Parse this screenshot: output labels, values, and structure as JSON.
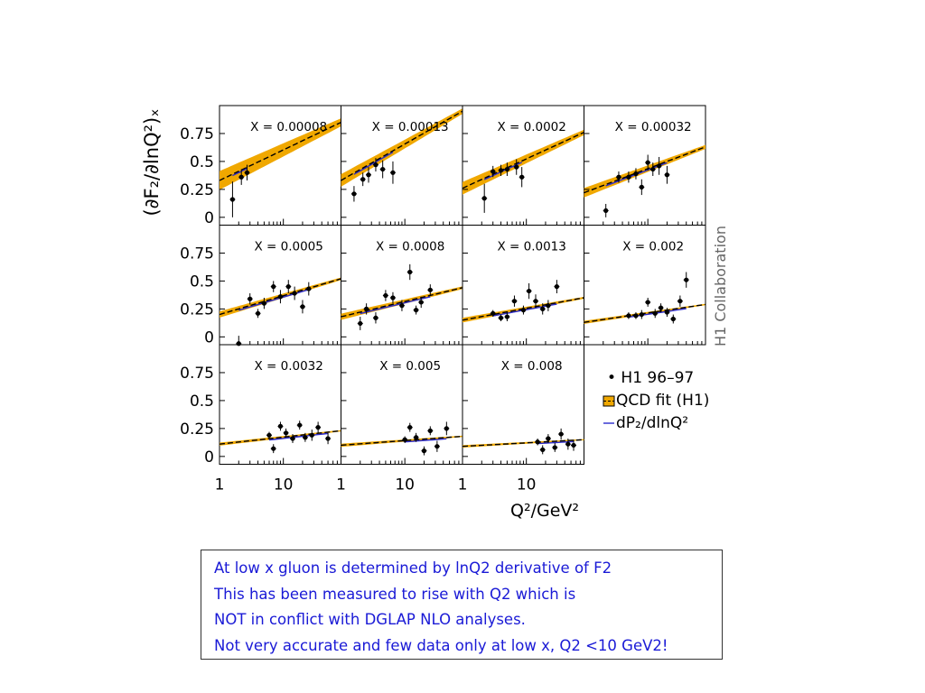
{
  "chart_data": {
    "type": "scatter",
    "panel_layout": "3x4 grid, legend in last cell",
    "y_axis": {
      "label": "(∂F₂/∂lnQ²)ₓ",
      "ticks": [
        "0",
        "0.25",
        "0.5",
        "0.75"
      ],
      "range": [
        -0.07,
        1.0
      ]
    },
    "x_axis": {
      "label": "Q²/GeV²",
      "scale": "log",
      "ticks": [
        "1",
        "10"
      ],
      "range": [
        1,
        80
      ]
    },
    "side_label": "H1 Collaboration",
    "legend": {
      "placement": "bottom-right",
      "items": [
        {
          "symbol": "dot",
          "label": "• H1 96–97"
        },
        {
          "symbol": "band",
          "label": "QCD fit (H1)"
        },
        {
          "symbol": "line",
          "label": "dP₂/dlnQ²"
        }
      ]
    },
    "colors": {
      "band": "#f0a800",
      "qcd_line": "#000000",
      "dp2_line": "#2a2acc",
      "points": "#000000"
    },
    "panels": [
      {
        "label": "X = 0.00008",
        "fit": [
          0.33,
          0.85
        ],
        "band": 0.06,
        "has_dp2": true,
        "points": [
          [
            1.6,
            0.16,
            0.16
          ],
          [
            2.2,
            0.36,
            0.07
          ],
          [
            2.7,
            0.4,
            0.07
          ]
        ]
      },
      {
        "label": "X = 0.00013",
        "fit": [
          0.33,
          0.95
        ],
        "band": 0.04,
        "has_dp2": true,
        "points": [
          [
            1.6,
            0.21,
            0.07
          ],
          [
            2.2,
            0.34,
            0.06
          ],
          [
            2.7,
            0.38,
            0.07
          ],
          [
            3.5,
            0.47,
            0.06
          ],
          [
            4.5,
            0.43,
            0.08
          ],
          [
            6.5,
            0.4,
            0.1
          ]
        ]
      },
      {
        "label": "X = 0.0002",
        "fit": [
          0.26,
          0.76
        ],
        "band": 0.04,
        "has_dp2": true,
        "points": [
          [
            2.2,
            0.17,
            0.13
          ],
          [
            3.0,
            0.41,
            0.05
          ],
          [
            4.0,
            0.42,
            0.05
          ],
          [
            5.0,
            0.43,
            0.06
          ],
          [
            7.0,
            0.45,
            0.07
          ],
          [
            8.5,
            0.36,
            0.09
          ]
        ]
      },
      {
        "label": "X = 0.00032",
        "fit": [
          0.22,
          0.63
        ],
        "band": 0.03,
        "has_dp2": true,
        "points": [
          [
            2.2,
            0.06,
            0.06
          ],
          [
            3.5,
            0.36,
            0.05
          ],
          [
            5.0,
            0.36,
            0.05
          ],
          [
            6.5,
            0.39,
            0.05
          ],
          [
            8.0,
            0.27,
            0.07
          ],
          [
            10,
            0.49,
            0.07
          ],
          [
            12,
            0.43,
            0.06
          ],
          [
            15,
            0.46,
            0.08
          ],
          [
            20,
            0.38,
            0.08
          ]
        ]
      },
      {
        "label": "X = 0.0005",
        "fit": [
          0.2,
          0.52
        ],
        "band": 0.02,
        "has_dp2": true,
        "points": [
          [
            2.0,
            -0.06,
            0.07
          ],
          [
            3.0,
            0.34,
            0.05
          ],
          [
            4.0,
            0.21,
            0.04
          ],
          [
            5.0,
            0.3,
            0.05
          ],
          [
            7.0,
            0.45,
            0.05
          ],
          [
            9.0,
            0.36,
            0.06
          ],
          [
            12,
            0.45,
            0.06
          ],
          [
            15,
            0.39,
            0.06
          ],
          [
            20,
            0.27,
            0.06
          ],
          [
            25,
            0.43,
            0.06
          ]
        ]
      },
      {
        "label": "X = 0.0008",
        "fit": [
          0.18,
          0.44
        ],
        "band": 0.02,
        "has_dp2": true,
        "points": [
          [
            2.0,
            0.12,
            0.06
          ],
          [
            2.5,
            0.25,
            0.05
          ],
          [
            3.5,
            0.17,
            0.05
          ],
          [
            5.0,
            0.37,
            0.05
          ],
          [
            6.5,
            0.35,
            0.05
          ],
          [
            9.0,
            0.28,
            0.05
          ],
          [
            12,
            0.58,
            0.07
          ],
          [
            15,
            0.24,
            0.04
          ],
          [
            18,
            0.31,
            0.05
          ],
          [
            25,
            0.42,
            0.05
          ]
        ]
      },
      {
        "label": "X = 0.0013",
        "fit": [
          0.15,
          0.35
        ],
        "band": 0.015,
        "has_dp2": true,
        "points": [
          [
            3.0,
            0.21,
            0.03
          ],
          [
            4.0,
            0.17,
            0.03
          ],
          [
            5.0,
            0.18,
            0.04
          ],
          [
            6.5,
            0.32,
            0.05
          ],
          [
            9.0,
            0.24,
            0.04
          ],
          [
            11,
            0.41,
            0.07
          ],
          [
            14,
            0.32,
            0.06
          ],
          [
            18,
            0.25,
            0.05
          ],
          [
            22,
            0.28,
            0.05
          ],
          [
            30,
            0.45,
            0.06
          ]
        ]
      },
      {
        "label": "X = 0.002",
        "fit": [
          0.13,
          0.29
        ],
        "band": 0.01,
        "has_dp2": true,
        "points": [
          [
            5.0,
            0.19,
            0.03
          ],
          [
            6.5,
            0.19,
            0.03
          ],
          [
            8.0,
            0.2,
            0.04
          ],
          [
            10,
            0.31,
            0.04
          ],
          [
            13,
            0.21,
            0.04
          ],
          [
            16,
            0.26,
            0.04
          ],
          [
            20,
            0.22,
            0.04
          ],
          [
            25,
            0.16,
            0.04
          ],
          [
            32,
            0.32,
            0.05
          ],
          [
            40,
            0.51,
            0.07
          ]
        ]
      },
      {
        "label": "X = 0.0032",
        "fit": [
          0.11,
          0.23
        ],
        "band": 0.01,
        "has_dp2": true,
        "points": [
          [
            6.0,
            0.19,
            0.03
          ],
          [
            7.0,
            0.07,
            0.04
          ],
          [
            9.0,
            0.27,
            0.04
          ],
          [
            11,
            0.21,
            0.04
          ],
          [
            14,
            0.16,
            0.04
          ],
          [
            18,
            0.28,
            0.04
          ],
          [
            22,
            0.17,
            0.04
          ],
          [
            28,
            0.19,
            0.05
          ],
          [
            35,
            0.26,
            0.05
          ],
          [
            50,
            0.16,
            0.05
          ]
        ]
      },
      {
        "label": "X = 0.005",
        "fit": [
          0.1,
          0.18
        ],
        "band": 0.01,
        "has_dp2": true,
        "points": [
          [
            10,
            0.15,
            0.03
          ],
          [
            12,
            0.26,
            0.04
          ],
          [
            15,
            0.17,
            0.04
          ],
          [
            20,
            0.05,
            0.04
          ],
          [
            25,
            0.23,
            0.04
          ],
          [
            32,
            0.09,
            0.05
          ],
          [
            45,
            0.25,
            0.06
          ]
        ]
      },
      {
        "label": "X = 0.008",
        "fit": [
          0.09,
          0.15
        ],
        "band": 0.008,
        "has_dp2": true,
        "points": [
          [
            15,
            0.13,
            0.03
          ],
          [
            18,
            0.06,
            0.04
          ],
          [
            22,
            0.16,
            0.04
          ],
          [
            28,
            0.08,
            0.04
          ],
          [
            35,
            0.2,
            0.05
          ],
          [
            45,
            0.11,
            0.05
          ],
          [
            55,
            0.1,
            0.05
          ]
        ]
      }
    ]
  },
  "note": {
    "lines": [
      "At low x gluon is determined by lnQ2 derivative of F2",
      "This has been measured to rise with Q2 which is",
      "NOT in conflict with DGLAP NLO analyses.",
      "Not very accurate and few data only at low x, Q2 <10 GeV2!"
    ]
  }
}
